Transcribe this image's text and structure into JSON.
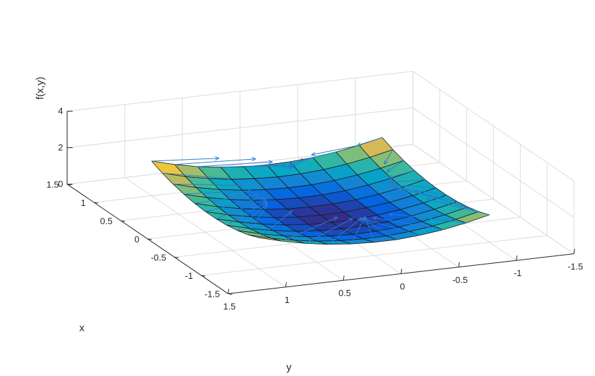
{
  "chart_data": {
    "type": "surface",
    "function_note": "",
    "xlabel": "x",
    "ylabel": "y",
    "zlabel": "f(x,y)",
    "x_ticks": [
      "-1.5",
      "-1",
      "-0.5",
      "0",
      "0.5",
      "1",
      "1.5"
    ],
    "y_ticks": [
      "1.5",
      "1",
      "0.5",
      "0",
      "-0.5",
      "-1",
      "-1.5"
    ],
    "z_ticks": [
      "0",
      "2",
      "4"
    ],
    "xlim": [
      -1.5,
      1.5
    ],
    "ylim": [
      -1.5,
      1.5
    ],
    "zlim": [
      0,
      4
    ],
    "grid": true,
    "surface_x_range": [
      -1,
      1
    ],
    "surface_y_range": [
      -1,
      1
    ],
    "grid_n": 10,
    "z_values": [
      [
        1.5,
        1.21,
        0.98,
        0.82,
        0.73,
        0.72,
        0.78,
        0.9,
        1.1,
        1.37,
        1.7
      ],
      [
        1.28,
        1.0,
        0.78,
        0.62,
        0.53,
        0.51,
        0.56,
        0.68,
        0.87,
        1.13,
        1.46
      ],
      [
        1.13,
        0.85,
        0.63,
        0.47,
        0.38,
        0.36,
        0.41,
        0.53,
        0.71,
        0.97,
        1.3
      ],
      [
        1.03,
        0.75,
        0.53,
        0.37,
        0.28,
        0.26,
        0.31,
        0.42,
        0.61,
        0.86,
        1.19
      ],
      [
        0.98,
        0.7,
        0.48,
        0.33,
        0.24,
        0.21,
        0.26,
        0.37,
        0.56,
        0.82,
        1.14
      ],
      [
        0.98,
        0.7,
        0.48,
        0.33,
        0.23,
        0.21,
        0.26,
        0.37,
        0.56,
        0.81,
        1.14
      ],
      [
        1.03,
        0.75,
        0.53,
        0.37,
        0.28,
        0.26,
        0.3,
        0.42,
        0.61,
        0.86,
        1.19
      ],
      [
        1.13,
        0.85,
        0.63,
        0.47,
        0.38,
        0.36,
        0.41,
        0.52,
        0.71,
        0.96,
        1.29
      ],
      [
        1.28,
        1.0,
        0.78,
        0.62,
        0.53,
        0.51,
        0.56,
        0.67,
        0.86,
        1.11,
        1.44
      ],
      [
        1.48,
        1.2,
        0.98,
        0.82,
        0.73,
        0.71,
        0.76,
        0.87,
        1.06,
        1.31,
        1.64
      ],
      [
        1.74,
        1.46,
        1.24,
        1.08,
        0.99,
        0.97,
        1.01,
        1.13,
        1.31,
        1.57,
        1.9
      ]
    ],
    "normals_shown": true,
    "colormap": [
      "#352a87",
      "#0363e1",
      "#1485d4",
      "#06a7c6",
      "#38b99e",
      "#92bf73",
      "#d9ba56",
      "#fcce2e",
      "#f9fb0e"
    ]
  }
}
